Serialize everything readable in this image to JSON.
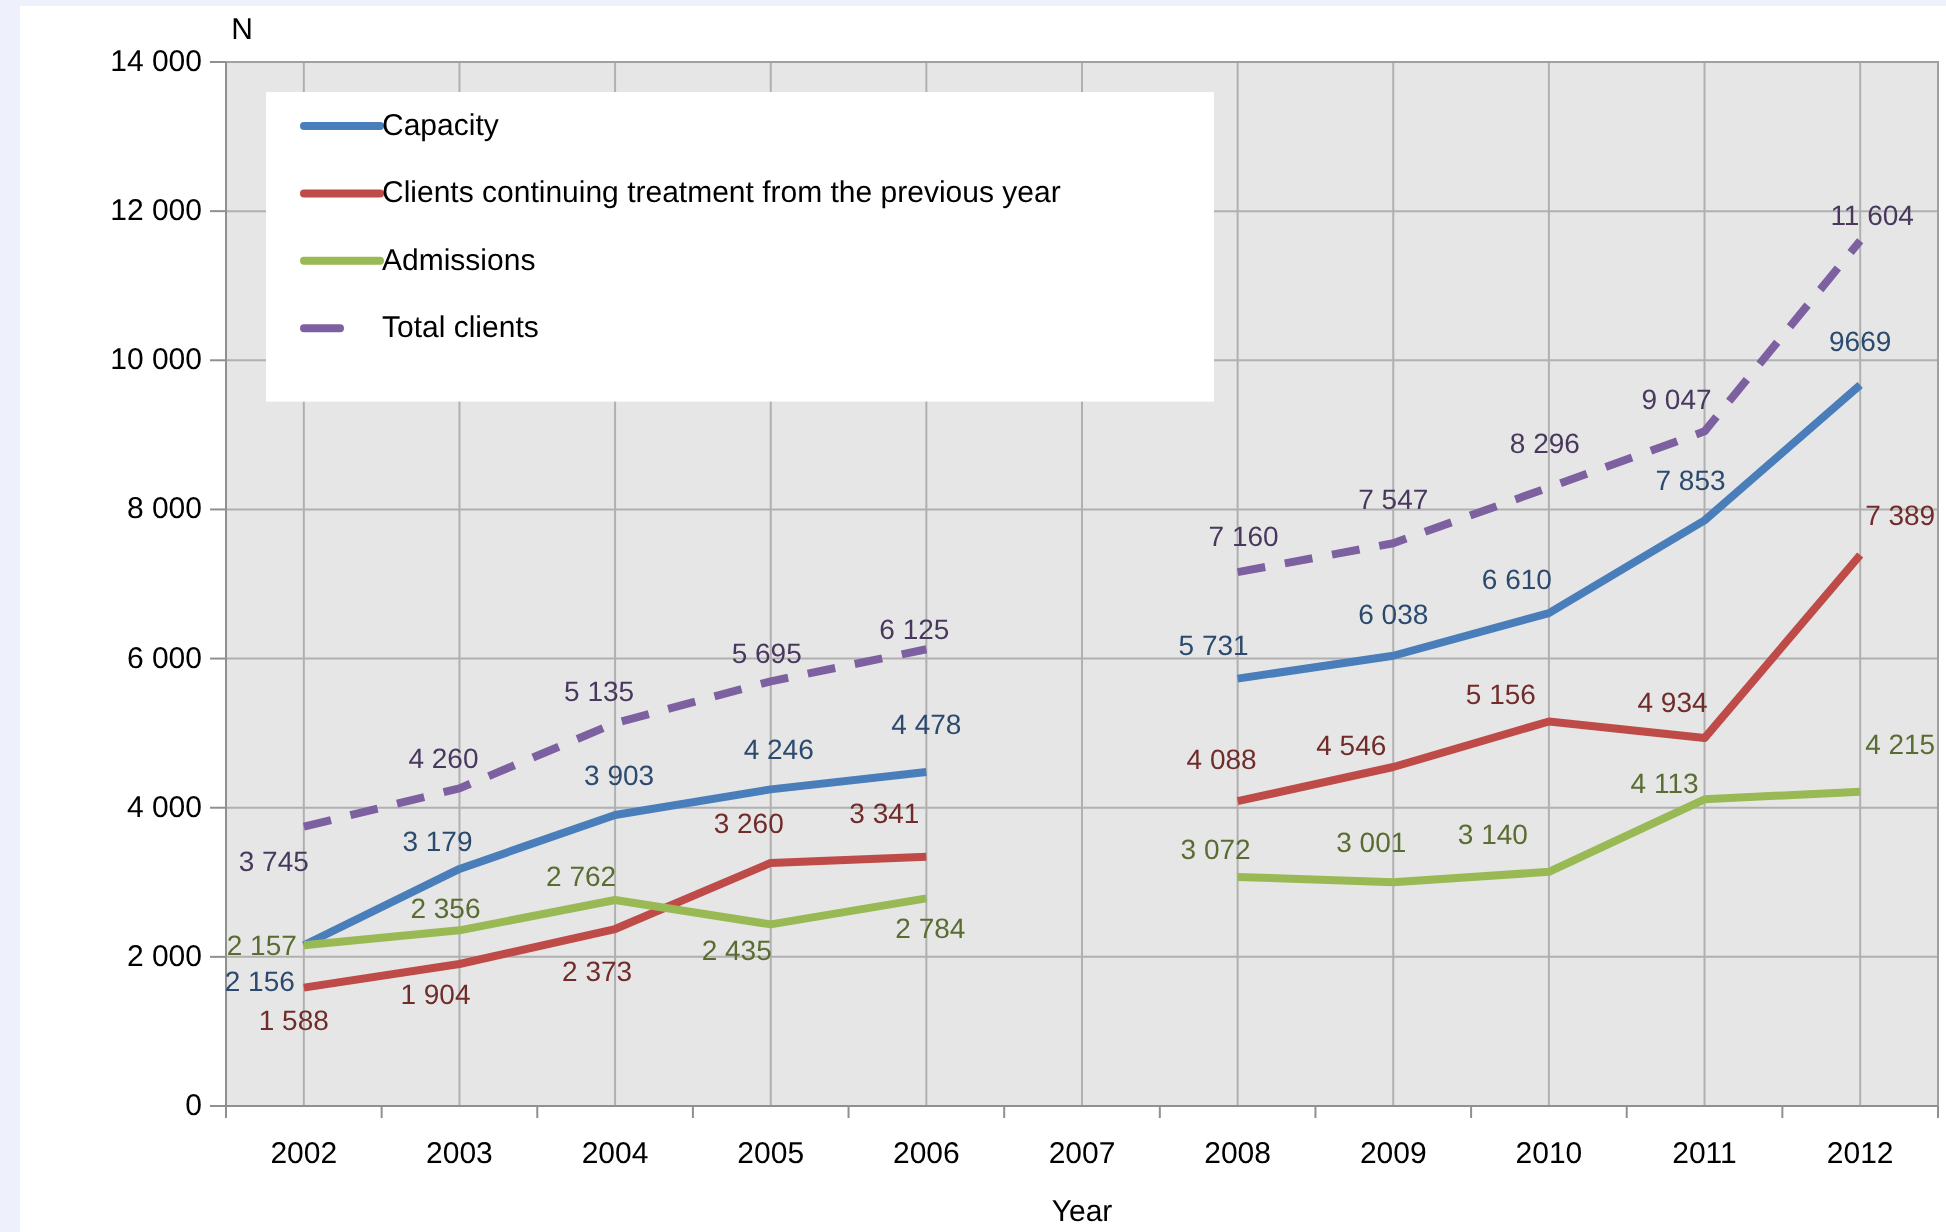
{
  "chart_data": {
    "type": "line",
    "xlabel": "Year",
    "ylabel": "N",
    "categories": [
      "2002",
      "2003",
      "2004",
      "2005",
      "2006",
      "2007",
      "2008",
      "2009",
      "2010",
      "2011",
      "2012"
    ],
    "ylim": [
      0,
      14000
    ],
    "yticks": [
      0,
      {
        "value": 2000,
        "label": "2 000"
      },
      {
        "value": 4000,
        "label": "4 000"
      },
      {
        "value": 6000,
        "label": "6 000"
      },
      {
        "value": 8000,
        "label": "8 000"
      },
      {
        "value": 10000,
        "label": "10 000"
      },
      {
        "value": 12000,
        "label": "12 000"
      },
      {
        "value": 14000,
        "label": "14 000"
      }
    ],
    "grid": true,
    "legend": "top left",
    "series": [
      {
        "name": "Capacity",
        "color": "#4a7ebb",
        "values": [
          2156,
          3179,
          3903,
          4246,
          4478,
          null,
          5731,
          6038,
          6610,
          7853,
          9669
        ],
        "value_labels": [
          "2 156",
          "3 179",
          "3 903",
          "4 246",
          "4 478",
          null,
          "5 731",
          "6 038",
          "6 610",
          "7 853",
          "9669"
        ]
      },
      {
        "name": "Clients continuing treatment from the previous year",
        "color": "#be4b48",
        "values": [
          1588,
          1904,
          2373,
          3260,
          3341,
          null,
          4088,
          4546,
          5156,
          4934,
          7389
        ],
        "value_labels": [
          "1 588",
          "1 904",
          "2 373",
          "3 260",
          "3 341",
          null,
          "4 088",
          "4 546",
          "5 156",
          "4 934",
          "7 389"
        ]
      },
      {
        "name": "Admissions",
        "color": "#98b954",
        "values": [
          2157,
          2356,
          2762,
          2435,
          2784,
          null,
          3072,
          3001,
          3140,
          4113,
          4215
        ],
        "value_labels": [
          "2 157",
          "2 356",
          "2 762",
          "2 435",
          "2 784",
          null,
          "3 072",
          "3 001",
          "3 140",
          "4 113",
          "4 215"
        ]
      },
      {
        "name": "Total clients",
        "color": "#7d60a0",
        "line_style": "dashed",
        "values": [
          3745,
          4260,
          5135,
          5695,
          6125,
          null,
          7160,
          7547,
          8296,
          9047,
          11604
        ],
        "value_labels": [
          "3 745",
          "4 260",
          "5 135",
          "5 695",
          "6 125",
          null,
          "7 160",
          "7 547",
          "8 296",
          "9 047",
          "11 604"
        ]
      }
    ]
  }
}
